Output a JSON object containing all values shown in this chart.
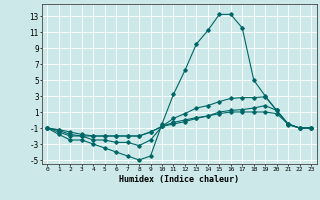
{
  "xlabel": "Humidex (Indice chaleur)",
  "background_color": "#cce8e8",
  "grid_color": "#ffffff",
  "line_color": "#006666",
  "xlim": [
    -0.5,
    23.5
  ],
  "ylim": [
    -5.5,
    14.5
  ],
  "xticks": [
    0,
    1,
    2,
    3,
    4,
    5,
    6,
    7,
    8,
    9,
    10,
    11,
    12,
    13,
    14,
    15,
    16,
    17,
    18,
    19,
    20,
    21,
    22,
    23
  ],
  "yticks": [
    -5,
    -3,
    -1,
    1,
    3,
    5,
    7,
    9,
    11,
    13
  ],
  "series": [
    {
      "x": [
        0,
        1,
        2,
        3,
        4,
        5,
        6,
        7,
        8,
        9,
        10,
        11,
        12,
        13,
        14,
        15,
        16,
        17,
        18,
        19,
        20,
        21,
        22,
        23
      ],
      "y": [
        -1,
        -1.8,
        -2.5,
        -2.5,
        -3,
        -3.5,
        -4,
        -4.5,
        -5,
        -4.5,
        -0.5,
        3.2,
        6.2,
        9.5,
        11.2,
        13.2,
        13.2,
        11.5,
        5,
        3,
        1.2,
        -0.6,
        -1,
        -1
      ]
    },
    {
      "x": [
        0,
        1,
        2,
        3,
        4,
        5,
        6,
        7,
        8,
        9,
        10,
        11,
        12,
        13,
        14,
        15,
        16,
        17,
        18,
        19,
        20,
        21,
        22,
        23
      ],
      "y": [
        -1,
        -1.5,
        -2,
        -2,
        -2.5,
        -2.5,
        -2.8,
        -2.8,
        -3.2,
        -2.5,
        -0.8,
        0.2,
        0.8,
        1.5,
        1.8,
        2.3,
        2.7,
        2.8,
        2.8,
        2.9,
        1.2,
        -0.5,
        -1,
        -1
      ]
    },
    {
      "x": [
        0,
        1,
        2,
        3,
        4,
        5,
        6,
        7,
        8,
        9,
        10,
        11,
        12,
        13,
        14,
        15,
        16,
        17,
        18,
        19,
        20,
        21,
        22,
        23
      ],
      "y": [
        -1,
        -1.3,
        -1.8,
        -2,
        -2,
        -2,
        -2,
        -2,
        -2,
        -1.5,
        -0.8,
        -0.5,
        -0.2,
        0.2,
        0.5,
        1.0,
        1.2,
        1.3,
        1.5,
        1.8,
        1.2,
        -0.5,
        -1,
        -1
      ]
    },
    {
      "x": [
        0,
        1,
        2,
        3,
        4,
        5,
        6,
        7,
        8,
        9,
        10,
        11,
        12,
        13,
        14,
        15,
        16,
        17,
        18,
        19,
        20,
        21,
        22,
        23
      ],
      "y": [
        -1,
        -1.2,
        -1.5,
        -1.8,
        -2,
        -2,
        -2,
        -2,
        -2,
        -1.5,
        -0.8,
        -0.3,
        0.0,
        0.3,
        0.5,
        0.8,
        1.0,
        1.0,
        1.0,
        1.0,
        0.8,
        -0.5,
        -1,
        -1
      ]
    }
  ]
}
